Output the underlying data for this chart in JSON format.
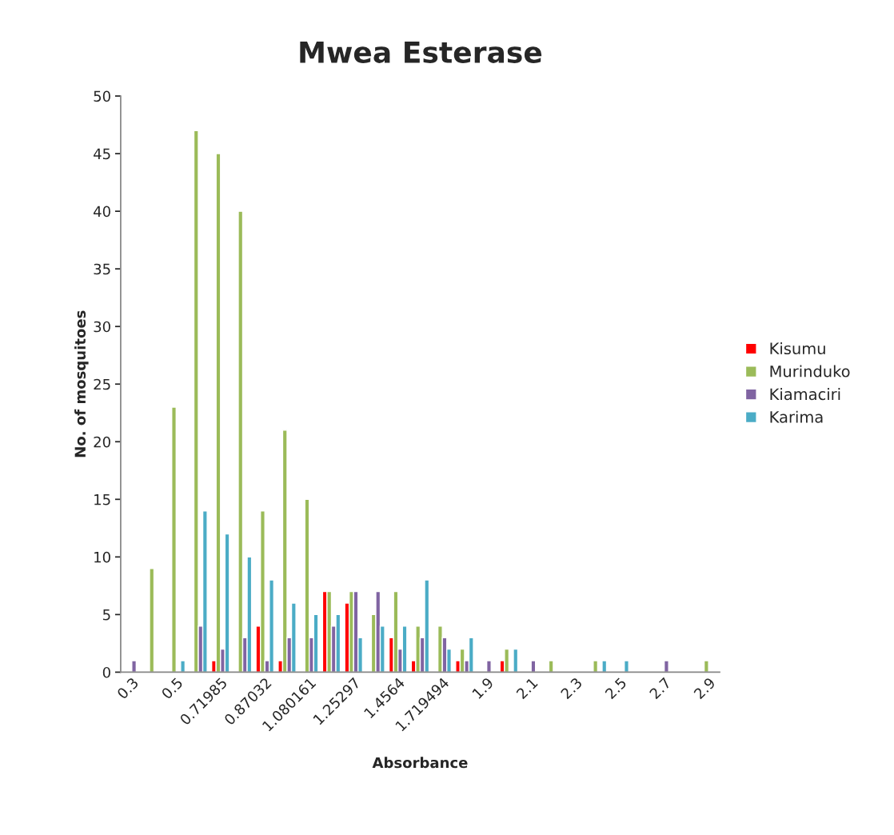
{
  "chart_data": {
    "type": "bar",
    "title": "Mwea Esterase",
    "xlabel": "Absorbance",
    "ylabel": "No. of mosquitoes",
    "categories": [
      "0.3",
      null,
      "0.5",
      null,
      "0.71985",
      null,
      "0.87032",
      null,
      "1.080161",
      null,
      "1.25297",
      null,
      "1.4564",
      null,
      "1.719494",
      null,
      "1.9",
      null,
      "2.1",
      null,
      "2.3",
      null,
      "2.5",
      null,
      "2.7",
      null,
      "2.9"
    ],
    "series": [
      {
        "name": "Kisumu",
        "color": "#ff0000",
        "values": [
          null,
          null,
          null,
          null,
          1,
          null,
          4,
          1,
          null,
          7,
          6,
          null,
          3,
          1,
          null,
          1,
          null,
          1,
          null,
          null,
          null,
          null,
          null,
          null,
          null,
          null,
          null
        ]
      },
      {
        "name": "Murinduko",
        "color": "#9bbb59",
        "values": [
          null,
          9,
          23,
          47,
          45,
          40,
          14,
          21,
          15,
          7,
          7,
          5,
          7,
          4,
          4,
          2,
          null,
          2,
          null,
          1,
          null,
          1,
          null,
          null,
          null,
          null,
          1
        ]
      },
      {
        "name": "Kiamaciri",
        "color": "#8064a2",
        "values": [
          1,
          null,
          null,
          4,
          2,
          3,
          1,
          3,
          3,
          4,
          7,
          7,
          2,
          3,
          3,
          1,
          1,
          null,
          1,
          null,
          null,
          null,
          null,
          null,
          1,
          null,
          null
        ]
      },
      {
        "name": "Karima",
        "color": "#4bacc6",
        "values": [
          null,
          null,
          1,
          14,
          12,
          10,
          8,
          6,
          5,
          5,
          3,
          4,
          4,
          8,
          2,
          3,
          null,
          2,
          null,
          null,
          null,
          1,
          1,
          null,
          null,
          null,
          null
        ]
      }
    ],
    "ylim": [
      0,
      50
    ],
    "yticks": [
      0,
      5,
      10,
      15,
      20,
      25,
      30,
      35,
      40,
      45,
      50
    ],
    "grid": false,
    "legend": "right"
  }
}
